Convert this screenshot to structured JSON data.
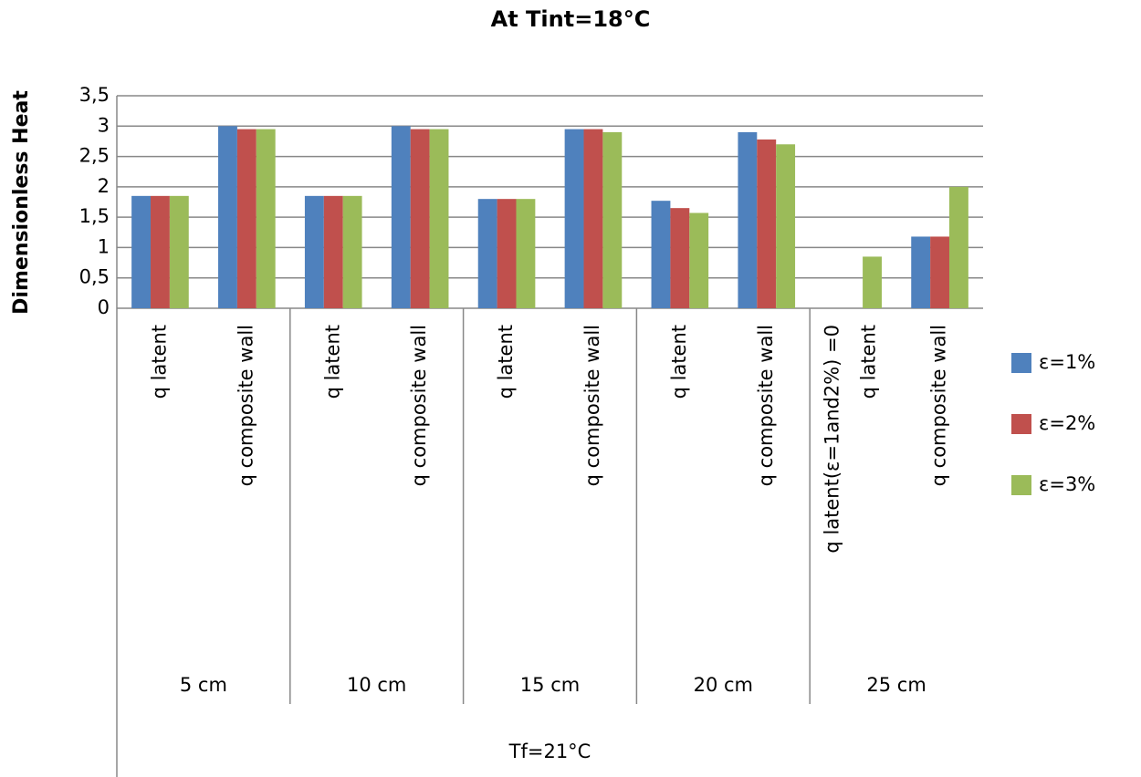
{
  "chart_data": {
    "type": "bar",
    "title": "At Tint=18°C",
    "y_label": "Dimensionless Heat",
    "categories": [
      "q latent",
      "q composite  wall",
      "q latent",
      "q composite  wall",
      "q latent",
      "q composite  wall",
      "q latent",
      "q composite  wall",
      "q latent",
      "q composite  wall"
    ],
    "groups": [
      "5 cm",
      "10 cm",
      "15 cm",
      "20 cm",
      "25 cm"
    ],
    "outer_label": "Tf=21°C",
    "annotation": "q latent(ε=1and2%) =0",
    "series": [
      {
        "name": "ε=1%",
        "color": "#4f81bd",
        "values": [
          1.85,
          3.0,
          1.85,
          3.0,
          1.8,
          2.95,
          1.77,
          2.9,
          0,
          1.18
        ]
      },
      {
        "name": "ε=2%",
        "color": "#c0504d",
        "values": [
          1.85,
          2.95,
          1.85,
          2.95,
          1.8,
          2.95,
          1.65,
          2.78,
          0,
          1.18
        ]
      },
      {
        "name": "ε=3%",
        "color": "#9bbb59",
        "values": [
          1.85,
          2.95,
          1.85,
          2.95,
          1.8,
          2.9,
          1.57,
          2.7,
          0.85,
          2.0
        ]
      }
    ],
    "ylim": [
      0,
      3.5
    ],
    "yticks": [
      0,
      {
        "value": 0.5,
        "label": "0,5"
      },
      1,
      {
        "value": 1.5,
        "label": "1,5"
      },
      2,
      {
        "value": 2.5,
        "label": "2,5"
      },
      3,
      {
        "value": 3.5,
        "label": "3,5"
      }
    ],
    "grid": true,
    "legend": "right"
  }
}
